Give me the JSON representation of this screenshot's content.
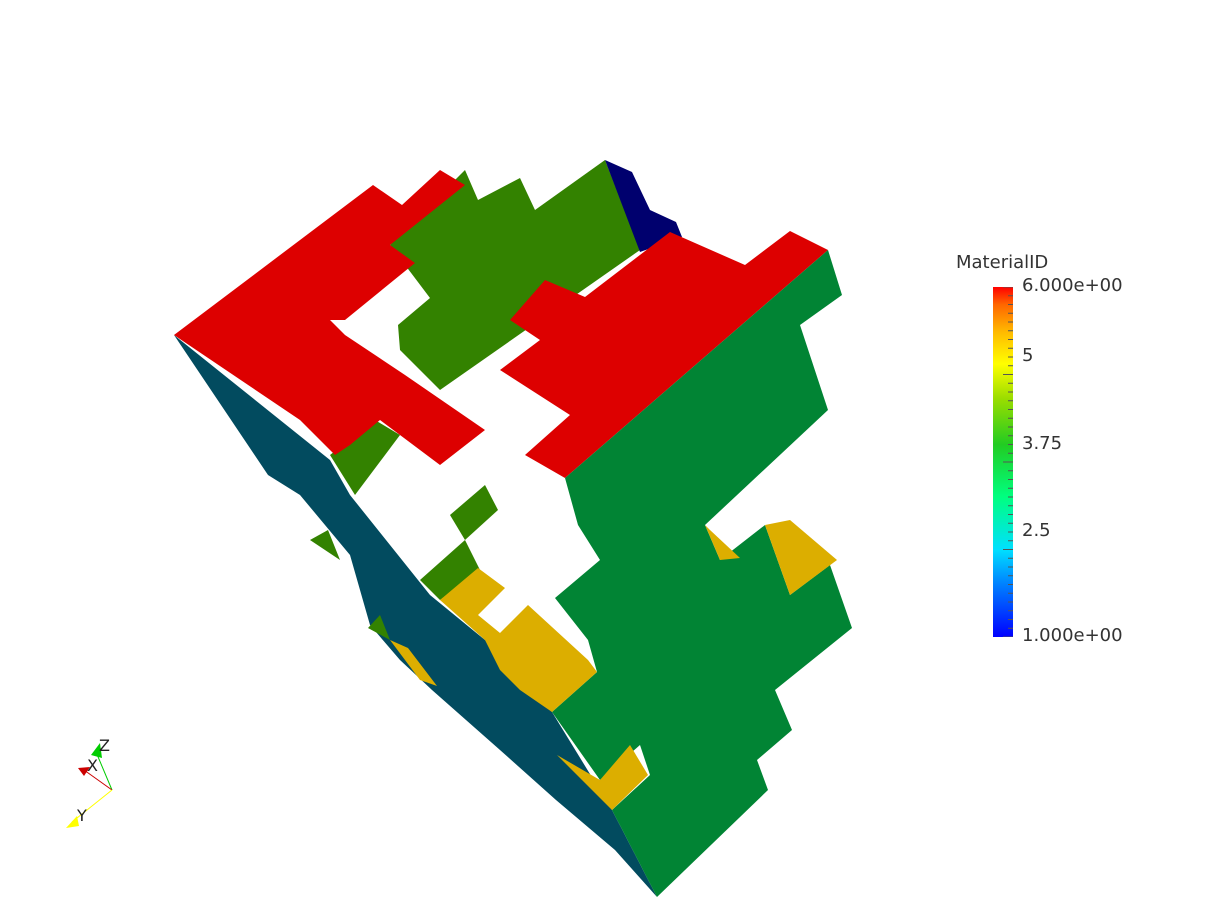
{
  "legend": {
    "title": "MaterialID",
    "tick_labels": [
      "6.000e+00",
      "5",
      "3.75",
      "2.5",
      "1.000e+00"
    ],
    "range": [
      1,
      6
    ],
    "colormap": [
      "#0000ff",
      "#00c8ff",
      "#00ff80",
      "#22cc22",
      "#99dd00",
      "#ffff00",
      "#ffbb00",
      "#ff6600",
      "#ff0000"
    ]
  },
  "orientation_axes": {
    "labels": {
      "x": "X",
      "y": "Y",
      "z": "Z"
    },
    "colors": {
      "x": "#cc0000",
      "y": "#ffff00",
      "z": "#00cc00"
    }
  },
  "scene": {
    "colors": {
      "red_top": "#dd0000",
      "dark_green_top": "#338200",
      "green_side": "#018434",
      "teal_side": "#024b5f",
      "yellow": "#dcae00",
      "navy": "#00006e",
      "background": "#ffffff"
    }
  }
}
